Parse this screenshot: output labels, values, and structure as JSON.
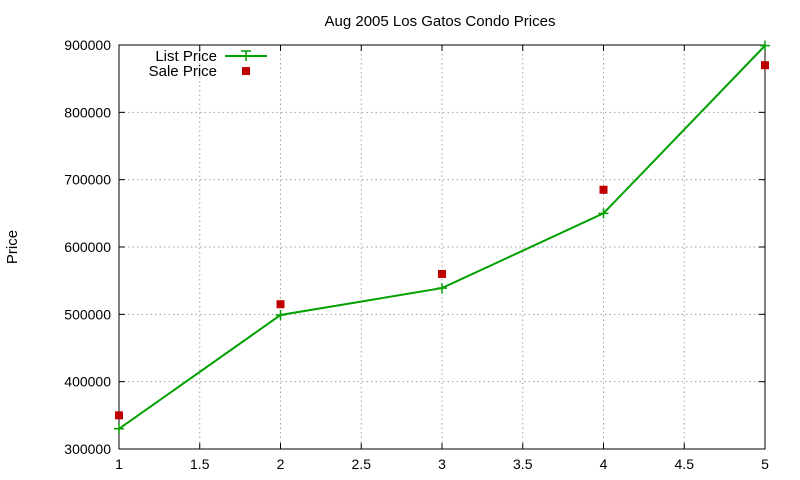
{
  "chart_data": {
    "type": "line",
    "title": "Aug 2005 Los Gatos Condo Prices",
    "xlabel": "",
    "ylabel": "Price",
    "xlim": [
      1,
      5
    ],
    "ylim": [
      300000,
      900000
    ],
    "xticks": [
      "1",
      "1.5",
      "2",
      "2.5",
      "3",
      "3.5",
      "4",
      "4.5",
      "5"
    ],
    "yticks": [
      "300000",
      "400000",
      "500000",
      "600000",
      "700000",
      "800000",
      "900000"
    ],
    "grid": true,
    "legend": "top-left",
    "series": [
      {
        "name": "List Price",
        "style": "linespoints",
        "color": "#00a000",
        "x": [
          1,
          2,
          3,
          4,
          5
        ],
        "values": [
          330000,
          499000,
          539000,
          650000,
          899000
        ]
      },
      {
        "name": "Sale Price",
        "style": "points",
        "color": "#c00000",
        "x": [
          1,
          2,
          3,
          4,
          5
        ],
        "values": [
          350000,
          515000,
          560000,
          685000,
          870000
        ]
      }
    ]
  }
}
